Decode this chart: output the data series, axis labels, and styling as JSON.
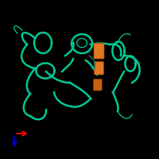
{
  "background_color": "#000000",
  "fig_size": [
    2.0,
    2.0
  ],
  "dpi": 100,
  "teal_color": "#00C896",
  "dark_teal_color": "#008B6A",
  "orange_color": "#E07820",
  "orange_color2": "#C86010",
  "axis_x_color": "#FF0000",
  "axis_y_color": "#0000CC"
}
